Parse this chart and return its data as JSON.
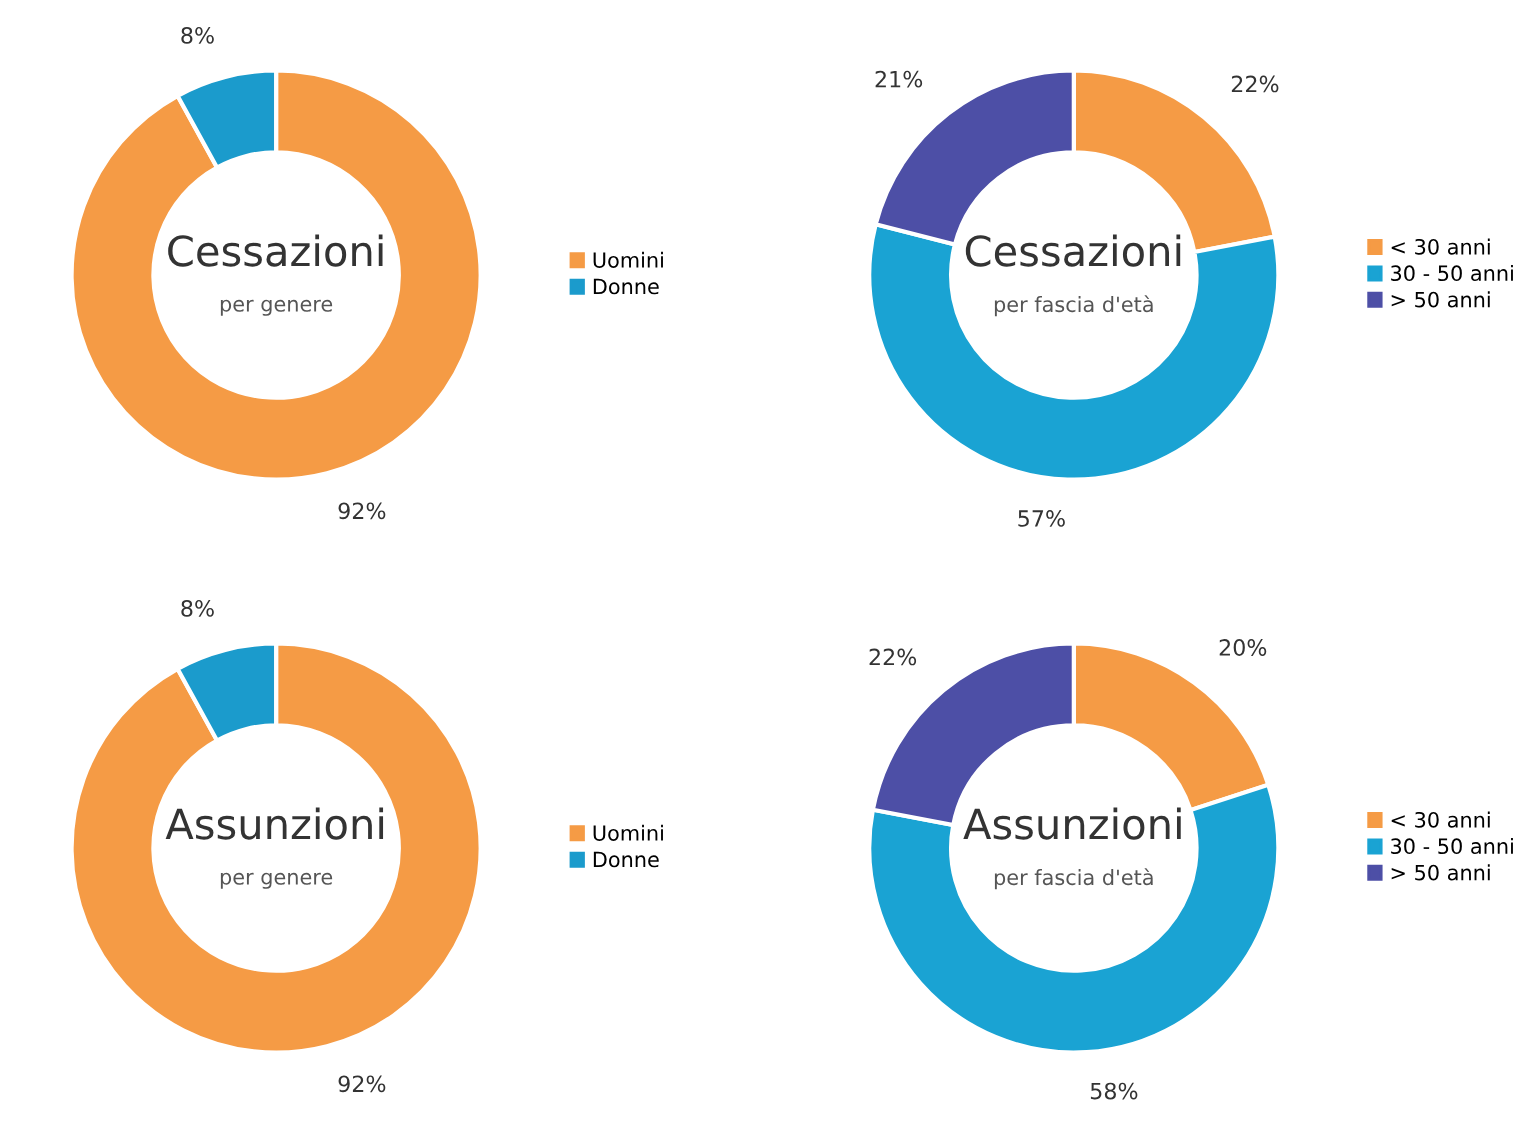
{
  "chart_data": [
    {
      "type": "donut",
      "title": "Cessazioni",
      "subtitle": "per genere",
      "categories": [
        "Uomini",
        "Donne"
      ],
      "values": [
        92,
        8
      ],
      "value_labels": [
        "92%",
        "8%"
      ],
      "colors": [
        "#f59b45",
        "#1b9bcc"
      ],
      "legend": "right"
    },
    {
      "type": "donut",
      "title": "Cessazioni",
      "subtitle": "per fascia d'età",
      "categories": [
        "< 30 anni",
        "30 - 50 anni",
        "> 50 anni"
      ],
      "values": [
        22,
        57,
        21
      ],
      "value_labels": [
        "22%",
        "57%",
        "21%"
      ],
      "colors": [
        "#f59b45",
        "#1aa3d3",
        "#4d4fa6"
      ],
      "legend": "right"
    },
    {
      "type": "donut",
      "title": "Assunzioni",
      "subtitle": "per genere",
      "categories": [
        "Uomini",
        "Donne"
      ],
      "values": [
        92,
        8
      ],
      "value_labels": [
        "92%",
        "8%"
      ],
      "colors": [
        "#f59b45",
        "#1b9bcc"
      ],
      "legend": "right"
    },
    {
      "type": "donut",
      "title": "Assunzioni",
      "subtitle": "per fascia d'età",
      "categories": [
        "< 30 anni",
        "30 - 50 anni",
        "> 50 anni"
      ],
      "values": [
        20,
        58,
        22
      ],
      "value_labels": [
        "20%",
        "58%",
        "22%"
      ],
      "colors": [
        "#f59b45",
        "#1aa3d3",
        "#4d4fa6"
      ],
      "legend": "right"
    }
  ]
}
